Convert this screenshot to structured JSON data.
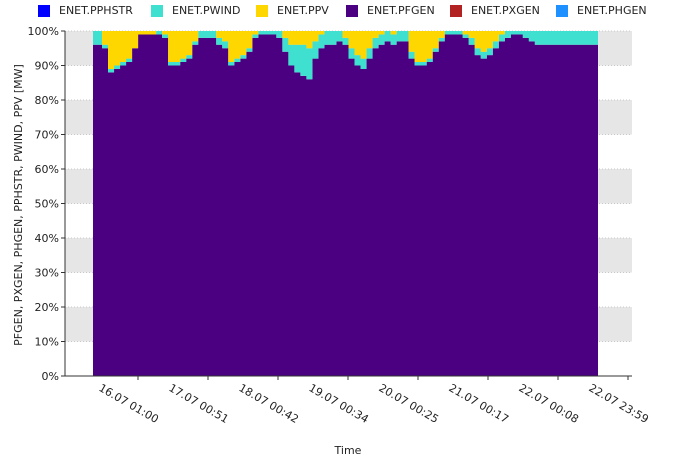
{
  "chart_data": {
    "type": "area",
    "stacked": true,
    "percent": true,
    "xlabel": "Time",
    "ylabel": "PFGEN, PXGEN, PHGEN, PPHSTR, PWIND, PPV [MW]",
    "ylim": [
      0,
      100
    ],
    "y_ticks": [
      "0%",
      "10%",
      "20%",
      "30%",
      "40%",
      "50%",
      "60%",
      "70%",
      "80%",
      "90%",
      "100%"
    ],
    "x_ticks": [
      "16.07 01:00",
      "17.07 00:51",
      "18.07 00:42",
      "19.07 00:34",
      "20.07 00:25",
      "21.07 00:17",
      "22.07 00:08",
      "22.07 23:59"
    ],
    "grid": "horizontal, alternating bands",
    "legend_position": "top",
    "legend": [
      {
        "name": "ENET.PPHSTR",
        "color": "#0000ff"
      },
      {
        "name": "ENET.PWIND",
        "color": "#40e0d0"
      },
      {
        "name": "ENET.PPV",
        "color": "#ffd700"
      },
      {
        "name": "ENET.PFGEN",
        "color": "#4b0082"
      },
      {
        "name": "ENET.PXGEN",
        "color": "#b22222"
      },
      {
        "name": "ENET.PHGEN",
        "color": "#1e90ff"
      }
    ],
    "x_hours": [
      0,
      2,
      4,
      6,
      8,
      10,
      12,
      14,
      16,
      18,
      20,
      22,
      24,
      26,
      28,
      30,
      32,
      34,
      36,
      38,
      40,
      42,
      44,
      46,
      48,
      50,
      52,
      54,
      56,
      58,
      60,
      62,
      64,
      66,
      68,
      70,
      72,
      74,
      76,
      78,
      80,
      82,
      84,
      86,
      88,
      90,
      92,
      94,
      96,
      98,
      100,
      102,
      104,
      106,
      108,
      110,
      112,
      114,
      116,
      118,
      120,
      122,
      124,
      126,
      128,
      130,
      132,
      134,
      136,
      138,
      140,
      142,
      144,
      146,
      148,
      150,
      152,
      154,
      156,
      158,
      160,
      162,
      164,
      166,
      168
    ],
    "series": [
      {
        "name": "ENET.PFGEN",
        "color": "#4b0082",
        "values": [
          96,
          96,
          95,
          88,
          89,
          90,
          91,
          95,
          99,
          99,
          99,
          99,
          98,
          90,
          90,
          91,
          92,
          96,
          98,
          98,
          98,
          96,
          95,
          90,
          91,
          92,
          94,
          98,
          99,
          99,
          99,
          98,
          94,
          90,
          88,
          87,
          86,
          92,
          95,
          96,
          96,
          97,
          96,
          92,
          90,
          89,
          92,
          95,
          96,
          97,
          96,
          97,
          97,
          92,
          90,
          90,
          91,
          94,
          97,
          99,
          99,
          99,
          98,
          96,
          93,
          92,
          93,
          95,
          97,
          98,
          99,
          99,
          98,
          97,
          96,
          96,
          96,
          96,
          96,
          96,
          96,
          96,
          96,
          96,
          96
        ]
      },
      {
        "name": "ENET.PWIND",
        "color": "#40e0d0",
        "values": [
          4,
          4,
          1,
          1,
          1,
          1,
          1,
          0,
          0,
          0,
          0,
          1,
          1,
          1,
          1,
          1,
          1,
          1,
          2,
          2,
          2,
          2,
          2,
          1,
          1,
          1,
          1,
          1,
          1,
          1,
          1,
          2,
          4,
          6,
          8,
          9,
          9,
          5,
          4,
          4,
          4,
          3,
          2,
          3,
          3,
          3,
          3,
          3,
          3,
          3,
          3,
          3,
          3,
          2,
          1,
          1,
          1,
          1,
          1,
          1,
          1,
          1,
          1,
          2,
          2,
          2,
          2,
          2,
          2,
          2,
          1,
          1,
          2,
          3,
          4,
          4,
          4,
          4,
          4,
          4,
          4,
          4,
          4,
          4,
          4
        ]
      },
      {
        "name": "ENET.PPV",
        "color": "#ffd700",
        "values": [
          0,
          0,
          4,
          11,
          10,
          9,
          8,
          5,
          1,
          1,
          1,
          0,
          1,
          9,
          9,
          8,
          7,
          3,
          0,
          0,
          0,
          2,
          3,
          9,
          8,
          7,
          5,
          1,
          0,
          0,
          0,
          0,
          2,
          4,
          4,
          4,
          5,
          3,
          1,
          0,
          0,
          0,
          2,
          5,
          7,
          8,
          5,
          2,
          1,
          0,
          1,
          0,
          0,
          6,
          9,
          9,
          8,
          5,
          2,
          0,
          0,
          0,
          1,
          2,
          5,
          6,
          5,
          3,
          1,
          0,
          0,
          0,
          0,
          0,
          0,
          0,
          0,
          0,
          0,
          0,
          0,
          0,
          0,
          0,
          0
        ]
      }
    ]
  }
}
